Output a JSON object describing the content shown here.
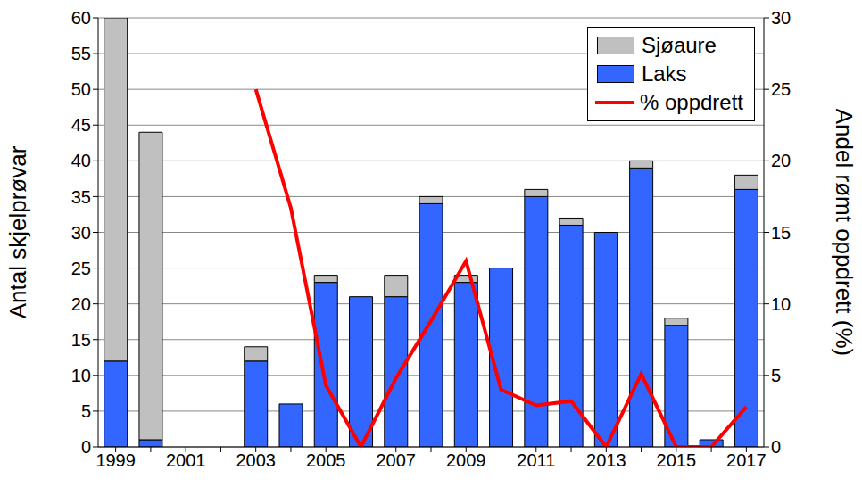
{
  "chart_data": {
    "type": "bar",
    "stacked": true,
    "grid": true,
    "legend": "upper right",
    "categories": [
      "1999",
      null,
      "2001",
      null,
      "2003",
      null,
      "2005",
      null,
      "2007",
      null,
      "2009",
      null,
      "2011",
      null,
      "2013",
      null,
      "2015",
      null,
      "2017"
    ],
    "y_label": "Antal skjelprøvar",
    "y2_label": "Andel rømt oppdrett (%)",
    "ylim": [
      0,
      60
    ],
    "yticks": [
      0,
      5,
      10,
      15,
      20,
      25,
      30,
      35,
      40,
      45,
      50,
      55,
      60
    ],
    "y2lim": [
      0,
      30
    ],
    "y2ticks": [
      0,
      5,
      10,
      15,
      20,
      25,
      30
    ],
    "series": [
      {
        "name": "Laks",
        "type": "bar",
        "color": "#3366ff",
        "values": [
          12,
          1,
          null,
          null,
          12,
          6,
          23,
          21,
          21,
          34,
          23,
          25,
          35,
          31,
          30,
          39,
          17,
          1,
          36
        ]
      },
      {
        "name": "Sjøaure",
        "type": "bar",
        "color": "#c0c0c0",
        "values": [
          48,
          43,
          null,
          null,
          2,
          0,
          1,
          0,
          3,
          1,
          1,
          0,
          1,
          1,
          0,
          1,
          1,
          0,
          2
        ]
      },
      {
        "name": "% oppdrett",
        "type": "line",
        "axis": "y2",
        "color": "#ff0000",
        "values": [
          null,
          null,
          null,
          null,
          25,
          16.7,
          4.3,
          0,
          4.8,
          8.8,
          13,
          4,
          2.9,
          3.2,
          0,
          5.1,
          0,
          0,
          2.8
        ]
      }
    ]
  }
}
